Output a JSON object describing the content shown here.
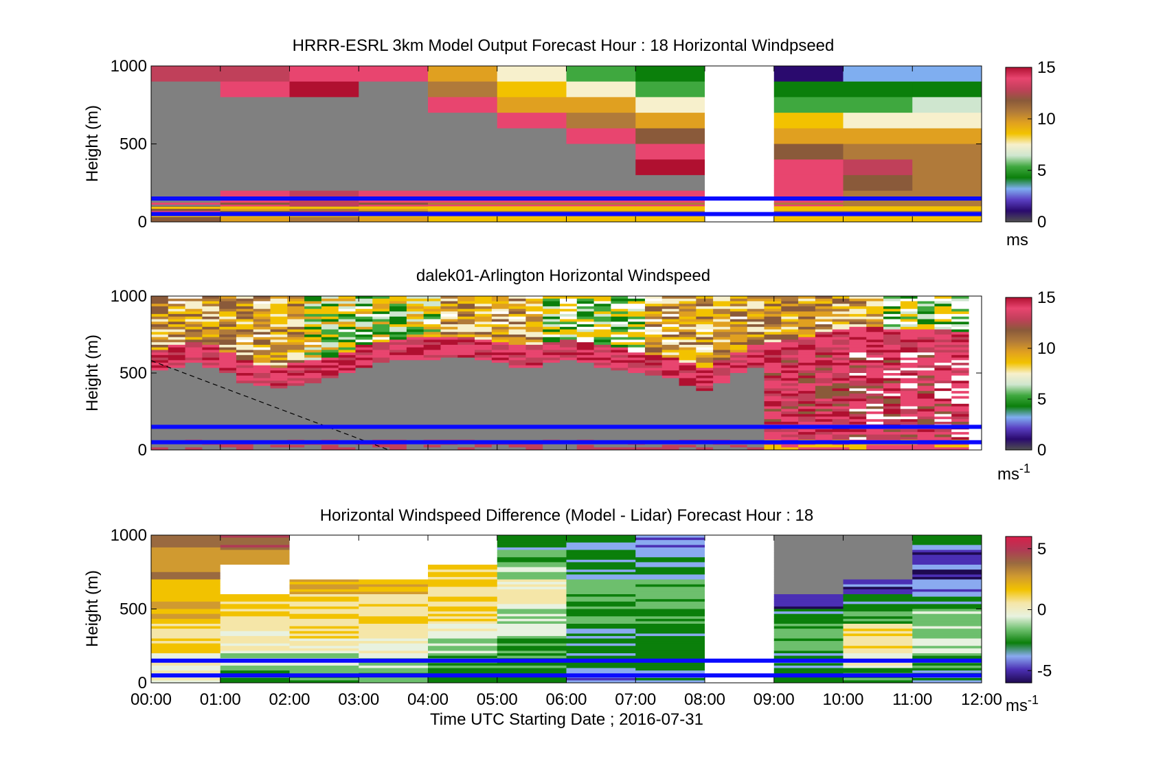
{
  "figure": {
    "xlabel": "Time UTC  Starting Date ; 2016-07-31",
    "x_tick_labels": [
      "00:00",
      "01:00",
      "02:00",
      "03:00",
      "04:00",
      "05:00",
      "06:00",
      "07:00",
      "08:00",
      "09:00",
      "10:00",
      "11:00",
      "12:00"
    ]
  },
  "colors": {
    "level_line": "#0a0aff",
    "missing": "#808080",
    "speed_scale": [
      "#505050",
      "#2a0a6e",
      "#5a3fc2",
      "#7faef0",
      "#0b7f0b",
      "#3fa83f",
      "#cfe6cf",
      "#f7f0cc",
      "#f2c200",
      "#e0a020",
      "#b07a3a",
      "#8a5a3a",
      "#c0405a",
      "#e8456f",
      "#b01030"
    ],
    "diff_scale": [
      "#1e0a50",
      "#4b2fb4",
      "#8aaaf0",
      "#0b7f0b",
      "#6dbf6d",
      "#e8f2e0",
      "#f5e6a8",
      "#f2c200",
      "#d09a30",
      "#9a6a40",
      "#b03a55",
      "#d81e4a"
    ]
  },
  "chart_data": [
    {
      "type": "heatmap",
      "title": "HRRR-ESRL 3km Model Output   Forecast Hour : 18 Horizontal Windpseed",
      "ylabel": "Height (m)",
      "xlim": [
        "00:00",
        "12:00"
      ],
      "ylim": [
        0,
        1000
      ],
      "y_ticks": [
        0,
        500,
        1000
      ],
      "colorbar": {
        "ticks": [
          0,
          5,
          10,
          15
        ],
        "label": "ms",
        "range": [
          0,
          15
        ]
      },
      "level_lines_m": [
        50,
        150
      ],
      "resolution": "hourly columns, ~100 m layers",
      "columns": [
        {
          "start": "00:00",
          "speed_ms_top_to_bottom": [
            13,
            null,
            null,
            null,
            null,
            null,
            null,
            null,
            null,
            12
          ]
        },
        {
          "start": "01:00",
          "speed_ms_top_to_bottom": [
            13,
            14,
            null,
            null,
            null,
            null,
            null,
            null,
            14,
            10
          ]
        },
        {
          "start": "02:00",
          "speed_ms_top_to_bottom": [
            14,
            15,
            null,
            null,
            null,
            null,
            null,
            null,
            13,
            11
          ]
        },
        {
          "start": "03:00",
          "speed_ms_top_to_bottom": [
            14,
            null,
            null,
            null,
            null,
            null,
            null,
            null,
            14,
            10
          ]
        },
        {
          "start": "04:00",
          "speed_ms_top_to_bottom": [
            10,
            11,
            14,
            null,
            null,
            null,
            null,
            null,
            14,
            9
          ]
        },
        {
          "start": "05:00",
          "speed_ms_top_to_bottom": [
            7,
            9,
            10,
            14,
            null,
            null,
            null,
            null,
            14,
            9
          ]
        },
        {
          "start": "06:00",
          "speed_ms_top_to_bottom": [
            5,
            8,
            10,
            11,
            14,
            null,
            null,
            null,
            14,
            9
          ]
        },
        {
          "start": "07:00",
          "speed_ms_top_to_bottom": [
            4,
            5,
            8,
            10,
            12,
            14,
            15,
            null,
            14,
            9
          ]
        },
        {
          "start": "08:00",
          "speed_ms_top_to_bottom": [
            null,
            null,
            null,
            null,
            null,
            null,
            null,
            null,
            null,
            null
          ]
        },
        {
          "start": "09:00",
          "speed_ms_top_to_bottom": [
            1,
            4,
            5,
            9,
            10,
            12,
            14,
            14,
            14,
            9
          ]
        },
        {
          "start": "10:00",
          "speed_ms_top_to_bottom": [
            3,
            4,
            5,
            8,
            10,
            11,
            13,
            12,
            11,
            9
          ]
        },
        {
          "start": "11:00",
          "speed_ms_top_to_bottom": [
            3,
            4,
            6,
            8,
            10,
            11,
            11,
            11,
            11,
            9
          ]
        }
      ]
    },
    {
      "type": "heatmap",
      "title": "dalek01-Arlington  Horizontal Windspeed",
      "ylabel": "Height (m)",
      "xlim": [
        "00:00",
        "12:00"
      ],
      "ylim": [
        0,
        1000
      ],
      "y_ticks": [
        0,
        500,
        1000
      ],
      "colorbar": {
        "ticks": [
          0,
          5,
          10,
          15
        ],
        "label": "ms-1",
        "range": [
          0,
          15
        ]
      },
      "level_lines_m": [
        50,
        150
      ],
      "resolution": "~15-minute profiles",
      "boundary_layer_top_m": [
        570,
        600,
        620,
        600,
        560,
        500,
        470,
        460,
        480,
        500,
        520,
        560,
        600,
        620,
        640,
        650,
        650,
        660,
        660,
        640,
        620,
        600,
        600,
        620,
        640,
        620,
        600,
        580,
        560,
        540,
        520,
        480,
        450,
        500,
        560,
        600,
        620,
        640,
        660,
        680,
        700,
        720,
        720,
        700,
        700,
        700,
        700,
        680
      ],
      "colors_above_boundary": "mixed 6-14 ms-1, green 4-7 ms-1 near 06:00-07:00 and 10:00-11:00 aloft",
      "annotation": "dashed line from 580 m at 00:00 to 0 m at 03:25"
    },
    {
      "type": "heatmap",
      "title": "Horizontal Windspeed Difference (Model - Lidar) Forecast Hour : 18",
      "ylabel": "Height (m)",
      "xlim": [
        "00:00",
        "12:00"
      ],
      "ylim": [
        0,
        1000
      ],
      "y_ticks": [
        0,
        500,
        1000
      ],
      "colorbar": {
        "ticks": [
          -5,
          0,
          5
        ],
        "label": "ms-1",
        "range": [
          -6,
          6
        ]
      },
      "level_lines_m": [
        50,
        150
      ],
      "resolution": "hourly columns",
      "columns": [
        {
          "start": "00:00",
          "profile": "mostly +1 to +4 aloft, near 0 to -1 below 300 m"
        },
        {
          "start": "01:00",
          "profile": "+3 to +4 near 900 m, gap 560-680 m, +1 to 0 below"
        },
        {
          "start": "02:00",
          "profile": "missing above 680 m, +2 to +1 below"
        },
        {
          "start": "03:00",
          "profile": "missing above 720 m, +1 to 0 below"
        },
        {
          "start": "04:00",
          "profile": "+1 to 0 aloft, -2 near surface"
        },
        {
          "start": "05:00",
          "profile": "-1 to -3 aloft, mixed"
        },
        {
          "start": "06:00",
          "profile": "-2 to -4"
        },
        {
          "start": "07:00",
          "profile": "-3 to -4"
        },
        {
          "start": "08:00",
          "profile": "no data"
        },
        {
          "start": "09:00",
          "profile": "missing above 560 m, -5 to -2 below"
        },
        {
          "start": "10:00",
          "profile": "-5 aloft, +1 near surface"
        },
        {
          "start": "11:00",
          "profile": "-5 to -3 aloft, -1 near surface"
        }
      ]
    }
  ]
}
